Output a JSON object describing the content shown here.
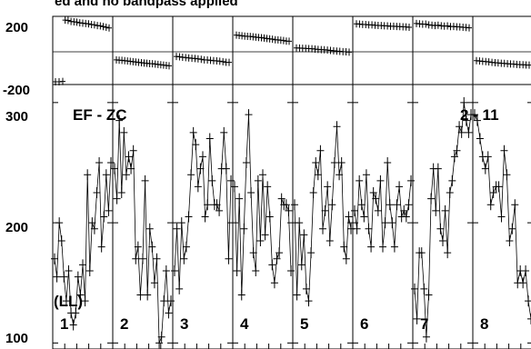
{
  "title_fragment": "ed and no bandpass applied",
  "baseline_label": "EF - ZC",
  "antenna_label": "2 - 11",
  "polarization": "(LL)",
  "chart_data": [
    {
      "type": "scatter",
      "panel": "phase",
      "ylim": [
        -200,
        200
      ],
      "ytick_labels": [
        "200",
        "-200"
      ],
      "series": [
        {
          "panel_label": "1",
          "values": [
            -184,
            -184,
            -182,
            178,
            176,
            170,
            168,
            166,
            162,
            160,
            158,
            156,
            152,
            150,
            146,
            144,
            140,
            136,
            132
          ]
        },
        {
          "panel_label": "2",
          "values": [
            -55,
            -57,
            -58,
            -60,
            -62,
            -64,
            -66,
            -68,
            -70,
            -72,
            -74,
            -75,
            -77,
            -78,
            -80,
            -82,
            -84,
            -86,
            -88,
            -90
          ]
        },
        {
          "panel_label": "3",
          "values": [
            -35,
            -37,
            -40,
            -42,
            -44,
            -46,
            -47,
            -49,
            -52,
            -55,
            -56,
            -58,
            -60,
            -61,
            -63,
            -66,
            -69,
            -70
          ]
        },
        {
          "panel_label": "4",
          "values": [
            90,
            88,
            86,
            84,
            83,
            82,
            80,
            78,
            76,
            75,
            73,
            70,
            68,
            66,
            63,
            62,
            60,
            58,
            55,
            54
          ]
        },
        {
          "panel_label": "5",
          "values": [
            15,
            14,
            13,
            12,
            11,
            10,
            8,
            6,
            5,
            4,
            2,
            0,
            -2,
            -4,
            -5,
            -7,
            -8,
            -10
          ]
        },
        {
          "panel_label": "6",
          "values": [
            156,
            155,
            153,
            152,
            150,
            150,
            148,
            147,
            146,
            145,
            144,
            142,
            142,
            141,
            140,
            139,
            138,
            136
          ]
        },
        {
          "panel_label": "7",
          "values": [
            158,
            156,
            154,
            155,
            150,
            148,
            146,
            148,
            145,
            143,
            144,
            140,
            141,
            139,
            138,
            136,
            135,
            133
          ]
        },
        {
          "panel_label": "8",
          "values": [
            -60,
            -62,
            -64,
            -65,
            -67,
            -70,
            -72,
            -73,
            -75,
            -76,
            -78,
            -79,
            -80,
            -82,
            -83,
            -84,
            -85,
            -86
          ]
        }
      ]
    },
    {
      "type": "line",
      "panel": "amplitude",
      "ylim": [
        95,
        315
      ],
      "ytick_labels": [
        "300",
        "200",
        "100"
      ],
      "series": [
        {
          "panel_label": "1",
          "values": [
            170,
            155,
            200,
            185,
            155,
            135,
            160,
            125,
            115,
            125,
            155,
            140,
            165,
            135,
            240,
            160,
            200,
            195,
            225,
            250,
            180,
            205,
            240,
            210,
            250
          ]
        },
        {
          "panel_label": "2",
          "values": [
            245,
            220,
            285,
            225,
            275,
            240,
            255,
            245,
            260,
            170,
            180,
            140,
            170,
            235,
            140,
            195,
            180,
            150,
            170,
            100,
            105,
            135,
            160,
            125,
            135
          ]
        },
        {
          "panel_label": "3",
          "values": [
            160,
            195,
            145,
            200,
            170,
            180,
            205,
            240,
            275,
            265,
            230,
            245,
            255,
            205,
            215,
            270,
            235,
            215,
            215,
            210,
            245,
            275,
            245,
            170,
            235
          ]
        },
        {
          "panel_label": "4",
          "values": [
            230,
            160,
            220,
            140,
            195,
            250,
            290,
            225,
            175,
            160,
            235,
            185,
            240,
            190,
            230,
            205,
            165,
            150,
            170,
            175,
            220,
            215,
            215,
            210,
            160
          ]
        },
        {
          "panel_label": "5",
          "values": [
            215,
            140,
            200,
            165,
            190,
            145,
            135,
            175,
            225,
            250,
            240,
            260,
            195,
            210,
            230,
            185,
            215,
            250,
            280,
            240,
            250,
            180,
            170,
            205,
            195
          ]
        },
        {
          "panel_label": "6",
          "values": [
            210,
            195,
            235,
            215,
            205,
            240,
            195,
            180,
            225,
            220,
            210,
            235,
            180,
            200,
            250,
            215,
            200,
            180,
            215,
            230,
            205,
            210,
            205,
            215,
            235
          ]
        },
        {
          "panel_label": "7",
          "values": [
            145,
            120,
            175,
            175,
            145,
            105,
            140,
            220,
            245,
            210,
            245,
            195,
            185,
            210,
            175,
            225,
            235,
            255,
            260,
            280,
            275,
            300,
            285,
            275,
            290
          ]
        },
        {
          "panel_label": "8",
          "values": [
            290,
            285,
            270,
            255,
            245,
            255,
            215,
            225,
            230,
            230,
            205,
            260,
            240,
            185,
            195,
            215,
            150,
            160,
            150,
            160,
            135,
            120
          ]
        }
      ]
    }
  ]
}
